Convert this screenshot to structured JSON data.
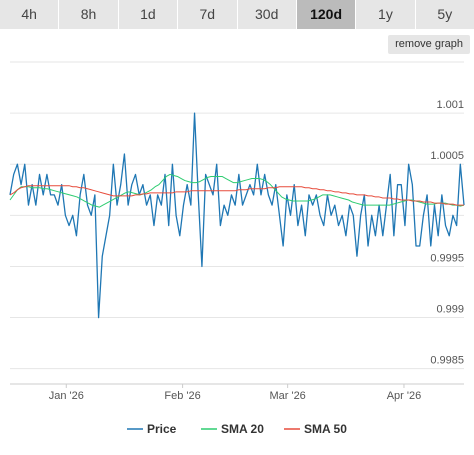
{
  "range_tabs": [
    {
      "label": "4h",
      "active": false
    },
    {
      "label": "8h",
      "active": false
    },
    {
      "label": "1d",
      "active": false
    },
    {
      "label": "7d",
      "active": false
    },
    {
      "label": "30d",
      "active": false
    },
    {
      "label": "120d",
      "active": true
    },
    {
      "label": "1y",
      "active": false
    },
    {
      "label": "5y",
      "active": false
    }
  ],
  "remove_graph_label": "remove graph",
  "colors": {
    "price": "#1f77b4",
    "sma20": "#2ecc71",
    "sma50": "#e74c3c",
    "grid": "#e6e6e6"
  },
  "chart_data": {
    "type": "line",
    "xlabel": "",
    "ylabel": "",
    "ylim": [
      0.99835,
      1.0015
    ],
    "y_ticks": [
      1.001,
      1.0005,
      0.9995,
      0.999,
      0.9985
    ],
    "y_tick_labels": [
      "1.001",
      "1.0005",
      "0.9995",
      "0.999",
      "0.9985"
    ],
    "x_ticks": [
      {
        "label": "Jan '26",
        "day": 15
      },
      {
        "label": "Feb '26",
        "day": 46
      },
      {
        "label": "Mar '26",
        "day": 74
      },
      {
        "label": "Apr '26",
        "day": 105
      }
    ],
    "x_range_days": [
      0,
      121
    ],
    "legend": [
      "Price",
      "SMA 20",
      "SMA 50"
    ],
    "legend_position": "bottom",
    "series": [
      {
        "name": "Price",
        "values": [
          1.0002,
          1.0004,
          1.0005,
          1.0003,
          1.0005,
          1.0001,
          1.0003,
          1.0001,
          1.0004,
          1.0002,
          1.0004,
          1.0002,
          1.0002,
          1.0001,
          1.0003,
          1.0,
          0.9999,
          1.0,
          0.9998,
          1.0002,
          1.0004,
          1.0001,
          1.0,
          1.0002,
          0.999,
          0.9996,
          0.9998,
          1.0,
          1.0005,
          1.0001,
          1.0003,
          1.0006,
          1.0001,
          1.0003,
          1.0004,
          1.0002,
          1.0003,
          1.0001,
          1.0002,
          0.9999,
          1.0002,
          1.0001,
          1.0004,
          0.9999,
          1.0005,
          1.0,
          0.9998,
          1.0001,
          1.0003,
          1.0001,
          1.001,
          1.0002,
          0.9995,
          1.0004,
          1.0003,
          1.0002,
          1.0005,
          0.9999,
          1.0001,
          1.0,
          1.0002,
          1.0001,
          1.0004,
          1.0001,
          1.0002,
          1.0003,
          1.0002,
          1.0005,
          1.0002,
          1.0004,
          1.0002,
          1.0001,
          1.0003,
          1.0,
          0.9997,
          1.0002,
          1.0,
          1.0003,
          0.9999,
          1.0001,
          0.9998,
          1.0002,
          1.0001,
          1.0002,
          1.0,
          0.9999,
          1.0002,
          1.0,
          1.0001,
          0.9999,
          1.0,
          0.9998,
          1.0001,
          1.0,
          0.9996,
          1.0,
          1.0002,
          0.9997,
          1.0,
          0.9998,
          1.0001,
          0.9998,
          1.0001,
          1.0004,
          0.9998,
          1.0003,
          1.0003,
          0.9999,
          1.0005,
          1.0003,
          0.9997,
          0.9997,
          1.0,
          1.0002,
          0.9997,
          1.0001,
          0.9998,
          1.0002,
          0.9999,
          0.9998,
          1.0,
          0.9999,
          1.0005,
          1.0001
        ]
      },
      {
        "name": "SMA 20",
        "values": [
          1.00015,
          1.0002,
          1.00025,
          1.00028,
          1.00028,
          1.00028,
          1.00027,
          1.00027,
          1.00027,
          1.00026,
          1.00026,
          1.00025,
          1.00024,
          1.00023,
          1.00022,
          1.00021,
          1.0002,
          1.00019,
          1.00018,
          1.00016,
          1.00014,
          1.00012,
          1.0001,
          1.00009,
          1.00008,
          1.0001,
          1.00012,
          1.00014,
          1.00016,
          1.00018,
          1.0002,
          1.00022,
          1.00023,
          1.00022,
          1.00021,
          1.0002,
          1.00021,
          1.00023,
          1.00025,
          1.00028,
          1.0003,
          1.00034,
          1.00038,
          1.0004,
          1.00039,
          1.00038,
          1.00036,
          1.00034,
          1.00033,
          1.00032,
          1.00032,
          1.00033,
          1.00035,
          1.00037,
          1.00038,
          1.00038,
          1.00038,
          1.00038,
          1.00036,
          1.00034,
          1.00032,
          1.00032,
          1.00033,
          1.00034,
          1.00035,
          1.00036,
          1.00036,
          1.00036,
          1.00035,
          1.00033,
          1.0003,
          1.00026,
          1.00022,
          1.00018,
          1.00016,
          1.00015,
          1.00014,
          1.00014,
          1.00014,
          1.00014,
          1.00014,
          1.00015,
          1.00016,
          1.00018,
          1.0002,
          1.0002,
          1.0002,
          1.00019,
          1.00018,
          1.00017,
          1.00016,
          1.00015,
          1.00013,
          1.00012,
          1.00011,
          1.0001,
          1.0001,
          1.0001,
          1.0001,
          1.0001,
          1.0001,
          1.0001,
          1.0001,
          1.00011,
          1.00012,
          1.00013,
          1.00014,
          1.00015,
          1.00015,
          1.00014,
          1.00013,
          1.00012,
          1.00011,
          1.00011,
          1.00011,
          1.00012,
          1.00012,
          1.00012,
          1.00011,
          1.0001,
          1.0001,
          1.00009,
          1.0001
        ]
      },
      {
        "name": "SMA 50",
        "values": [
          1.0002,
          1.00022,
          1.00025,
          1.00027,
          1.00028,
          1.00029,
          1.00029,
          1.00029,
          1.00029,
          1.00029,
          1.00029,
          1.00029,
          1.00029,
          1.00029,
          1.00029,
          1.00029,
          1.00029,
          1.00028,
          1.00028,
          1.00027,
          1.00027,
          1.00026,
          1.00025,
          1.00024,
          1.00023,
          1.00022,
          1.00021,
          1.0002,
          1.00019,
          1.00019,
          1.00019,
          1.00019,
          1.00019,
          1.00019,
          1.0002,
          1.0002,
          1.00021,
          1.00021,
          1.00022,
          1.00022,
          1.00022,
          1.00022,
          1.00022,
          1.00022,
          1.00022,
          1.00023,
          1.00023,
          1.00023,
          1.00023,
          1.00024,
          1.00024,
          1.00024,
          1.00024,
          1.00024,
          1.00024,
          1.00024,
          1.00024,
          1.00024,
          1.00024,
          1.00024,
          1.00024,
          1.00024,
          1.00025,
          1.00025,
          1.00025,
          1.00026,
          1.00026,
          1.00026,
          1.00026,
          1.00026,
          1.00027,
          1.00027,
          1.00027,
          1.00028,
          1.00028,
          1.00028,
          1.00028,
          1.00028,
          1.00028,
          1.00028,
          1.00027,
          1.00027,
          1.00026,
          1.00026,
          1.00025,
          1.00025,
          1.00024,
          1.00024,
          1.00023,
          1.00023,
          1.00022,
          1.00022,
          1.00021,
          1.00021,
          1.0002,
          1.0002,
          1.0002,
          1.00019,
          1.00019,
          1.00018,
          1.00018,
          1.00017,
          1.00017,
          1.00017,
          1.00016,
          1.00016,
          1.00015,
          1.00015,
          1.00015,
          1.00014,
          1.00014,
          1.00014,
          1.00013,
          1.00013,
          1.00013,
          1.00012,
          1.00012,
          1.00012,
          1.00011,
          1.00011,
          1.00011,
          1.0001,
          1.0001,
          1.0001
        ]
      }
    ]
  }
}
